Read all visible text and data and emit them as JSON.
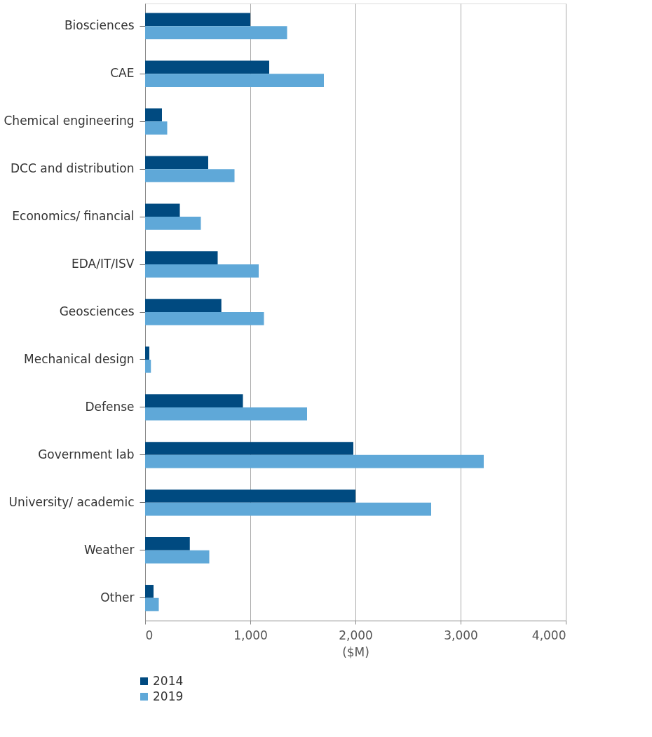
{
  "chart_data": {
    "type": "bar",
    "orientation": "horizontal",
    "xlabel": "($M)",
    "categories": [
      "Biosciences",
      "CAE",
      "Chemical engineering",
      "DCC and distribution",
      "Economics/ financial",
      "EDA/IT/ISV",
      "Geosciences",
      "Mechanical design",
      "Defense",
      "Government lab",
      "University/ academic",
      "Weather",
      "Other"
    ],
    "series": [
      {
        "name": "2014",
        "color": "#004a80",
        "values": [
          1000,
          1180,
          160,
          600,
          330,
          690,
          725,
          40,
          930,
          1980,
          2000,
          425,
          80
        ]
      },
      {
        "name": "2019",
        "color": "#5fa8d8",
        "values": [
          1350,
          1700,
          210,
          850,
          530,
          1080,
          1130,
          55,
          1540,
          3220,
          2720,
          610,
          130
        ]
      }
    ],
    "xlim": [
      0,
      4000
    ],
    "xticks": [
      0,
      {
        "value": 1000,
        "label": "1,000"
      },
      {
        "value": 2000,
        "label": "2,000"
      },
      {
        "value": 3000,
        "label": "3,000"
      },
      {
        "value": 4000,
        "label": "4,000"
      }
    ],
    "grid": "x",
    "legend": "bottom left"
  }
}
